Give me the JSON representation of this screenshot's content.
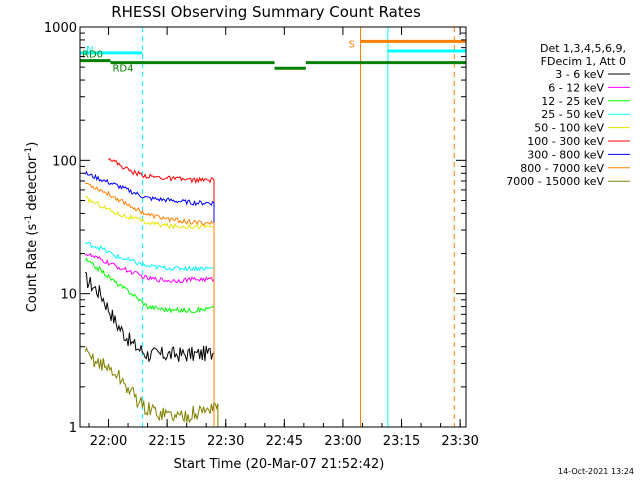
{
  "chart_data": {
    "type": "line",
    "title": "RHESSI Observing Summary Count Rates",
    "xlabel": "Start Time (20-Mar-07 21:52:42)",
    "ylabel_main": "Count Rate (s",
    "ylabel_sup1": "-1",
    "ylabel_mid": " detector",
    "ylabel_sup2": "-1",
    "ylabel_end": ")",
    "y_scale": "log",
    "ylim": [
      1,
      1000
    ],
    "xlim": [
      "21:52:42",
      "23:31:30"
    ],
    "x_ticks": [
      "22:00",
      "22:15",
      "22:30",
      "22:45",
      "23:00",
      "23:15",
      "23:30"
    ],
    "y_ticks": [
      "1",
      "10",
      "100",
      "1000"
    ],
    "legend_header": [
      "Det 1,3,4,5,6,9,",
      "FDecim 1, Att 0"
    ],
    "legend_placement": "right",
    "timestamp": "14-Oct-2021 13:24",
    "series": [
      {
        "name": "3 - 6 keV",
        "color": "#000000",
        "x": [
          "21:54:00",
          "21:58:00",
          "22:02:00",
          "22:06:00",
          "22:10:00",
          "22:16:00",
          "22:22:00",
          "22:27:00"
        ],
        "values": [
          13,
          10,
          6,
          4.2,
          3.5,
          3.5,
          3.5,
          3.6
        ]
      },
      {
        "name": "6 - 12 keV",
        "color": "#ff00ff",
        "x": [
          "21:54:00",
          "21:58:00",
          "22:02:00",
          "22:06:00",
          "22:10:00",
          "22:16:00",
          "22:22:00",
          "22:27:00"
        ],
        "values": [
          20,
          18,
          16,
          14.5,
          13,
          12.5,
          12.8,
          12.8
        ]
      },
      {
        "name": "12 - 25 keV",
        "color": "#00ff00",
        "x": [
          "21:54:00",
          "21:58:00",
          "22:02:00",
          "22:06:00",
          "22:10:00",
          "22:16:00",
          "22:22:00",
          "22:27:00"
        ],
        "values": [
          18,
          15,
          12,
          10,
          8,
          7.5,
          7.5,
          7.8
        ]
      },
      {
        "name": "25 - 50 keV",
        "color": "#00ffff",
        "x": [
          "21:54:00",
          "21:58:00",
          "22:02:00",
          "22:06:00",
          "22:10:00",
          "22:16:00",
          "22:22:00",
          "22:27:00"
        ],
        "values": [
          24,
          22,
          19,
          17.5,
          16,
          15.5,
          15.5,
          15.5
        ]
      },
      {
        "name": "50 - 100 keV",
        "color": "#e6e600",
        "x": [
          "21:54:00",
          "21:58:00",
          "22:02:00",
          "22:06:00",
          "22:10:00",
          "22:16:00",
          "22:22:00",
          "22:27:00"
        ],
        "values": [
          52,
          46,
          40,
          37,
          34,
          32,
          32,
          32
        ]
      },
      {
        "name": "100 - 300 keV",
        "color": "#ff0000",
        "x": [
          "22:00:00",
          "22:03:00",
          "22:06:00",
          "22:10:00",
          "22:16:00",
          "22:22:00",
          "22:27:00"
        ],
        "values": [
          105,
          92,
          82,
          76,
          73,
          71,
          71
        ]
      },
      {
        "name": "300 - 800 keV",
        "color": "#0000ff",
        "x": [
          "21:54:00",
          "21:58:00",
          "22:02:00",
          "22:06:00",
          "22:10:00",
          "22:16:00",
          "22:22:00",
          "22:27:00"
        ],
        "values": [
          80,
          72,
          65,
          58,
          52,
          50,
          48,
          48
        ]
      },
      {
        "name": "800 - 7000 keV",
        "color": "#ff8000",
        "x": [
          "21:54:00",
          "21:58:00",
          "22:02:00",
          "22:06:00",
          "22:10:00",
          "22:16:00",
          "22:22:00",
          "22:27:00"
        ],
        "values": [
          68,
          60,
          52,
          45,
          39,
          36,
          34,
          34
        ]
      },
      {
        "name": "7000 - 15000 keV",
        "color": "#808000",
        "x": [
          "21:54:00",
          "21:58:00",
          "22:02:00",
          "22:06:00",
          "22:09:00",
          "22:12:00",
          "22:18:00",
          "22:24:00",
          "22:28:00"
        ],
        "values": [
          3.5,
          3.0,
          2.5,
          1.8,
          1.4,
          1.3,
          1.2,
          1.3,
          1.5
        ]
      }
    ],
    "flags": [
      {
        "label": "N",
        "color": "#00ffff",
        "start": "21:52:42",
        "end": "22:08:40",
        "level": 640
      },
      {
        "label": "RD0",
        "color": "#008000",
        "start": "21:52:42",
        "end": "22:00:30",
        "level": 560
      },
      {
        "label": "RD4",
        "color": "#008000",
        "start": "22:00:30",
        "end": "22:42:30",
        "level": 540
      },
      {
        "label": "",
        "color": "#008000",
        "start": "22:42:30",
        "end": "22:50:30",
        "level": 490
      },
      {
        "label": "",
        "color": "#008000",
        "start": "22:50:30",
        "end": "23:31:30",
        "level": 540
      },
      {
        "label": "S",
        "color": "#ff8000",
        "start": "23:04:30",
        "end": "23:31:30",
        "level": 780
      },
      {
        "label": "",
        "color": "#00ffff",
        "start": "23:11:30",
        "end": "23:31:30",
        "level": 660
      }
    ],
    "vlines": [
      {
        "t": "22:08:40",
        "color": "#00ffff",
        "dashed": true
      },
      {
        "t": "23:04:30",
        "color": "#ff8000",
        "dashed": false
      },
      {
        "t": "23:11:30",
        "color": "#00ffff",
        "dashed": false
      },
      {
        "t": "23:28:30",
        "color": "#ff8000",
        "dashed": true
      }
    ]
  }
}
